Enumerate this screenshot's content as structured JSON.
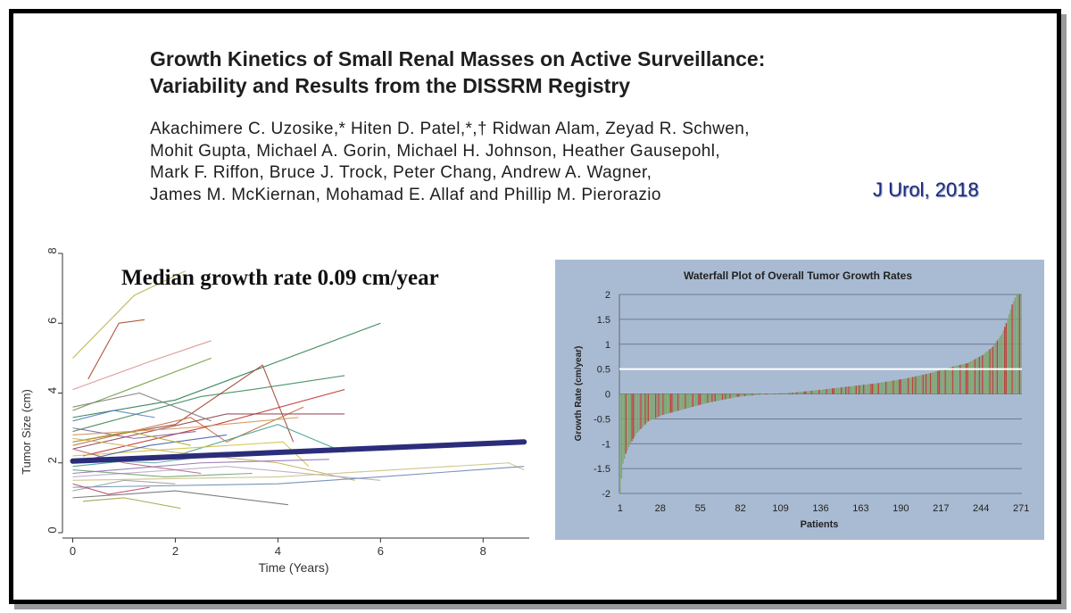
{
  "paper": {
    "title_line1": "Growth Kinetics of Small Renal Masses on Active Surveillance:",
    "title_line2": "Variability and Results from the DISSRM Registry",
    "authors": [
      "Akachimere C. Uzosike,* Hiten D. Patel,*,† Ridwan Alam, Zeyad R. Schwen,",
      "Mohit Gupta, Michael A. Gorin, Michael H. Johnson, Heather Gausepohl,",
      "Mark F. Riffon, Bruce J. Trock, Peter Chang, Andrew A. Wagner,",
      "James M. McKiernan, Mohamad E. Allaf and Phillip M. Pierorazio"
    ],
    "journal": "J Urol, 2018"
  },
  "chart_data": [
    {
      "type": "line",
      "title": "Median growth rate 0.09 cm/year",
      "xlabel": "Time (Years)",
      "ylabel": "Tumor Size (cm)",
      "xlim": [
        -0.2,
        8.9
      ],
      "ylim": [
        0,
        8
      ],
      "xticks": [
        "0",
        "2",
        "4",
        "6",
        "8"
      ],
      "yticks": [
        "0",
        "2",
        "4",
        "6",
        "8"
      ],
      "grid": false,
      "median_trend": {
        "x": [
          0,
          8.8
        ],
        "y": [
          2.05,
          2.6
        ],
        "color": "#2b2d7a"
      },
      "individual_series": [
        {
          "x": [
            0,
            1.2,
            2.2
          ],
          "y": [
            5.0,
            6.8,
            7.5
          ],
          "color": "#b8b040"
        },
        {
          "x": [
            0.3,
            0.9,
            1.4
          ],
          "y": [
            4.4,
            6.0,
            6.1
          ],
          "color": "#a84020"
        },
        {
          "x": [
            0,
            1.5,
            2.7
          ],
          "y": [
            4.1,
            4.9,
            5.5
          ],
          "color": "#d89090"
        },
        {
          "x": [
            0,
            2.7
          ],
          "y": [
            3.5,
            5.0
          ],
          "color": "#6a9a40"
        },
        {
          "x": [
            0,
            2.0,
            4.0,
            6.0
          ],
          "y": [
            3.3,
            3.8,
            4.9,
            6.0
          ],
          "color": "#2a7a4a"
        },
        {
          "x": [
            0,
            2.5,
            3.5,
            5.3
          ],
          "y": [
            2.9,
            3.9,
            4.1,
            4.5
          ],
          "color": "#3a8a5a"
        },
        {
          "x": [
            0,
            2.0,
            3.7,
            4.3
          ],
          "y": [
            2.6,
            3.1,
            4.8,
            2.6
          ],
          "color": "#a04030"
        },
        {
          "x": [
            0,
            2.3,
            3.0,
            4.5
          ],
          "y": [
            2.5,
            3.3,
            2.6,
            3.6
          ],
          "color": "#c07040"
        },
        {
          "x": [
            0.2,
            2.8,
            5.3
          ],
          "y": [
            2.2,
            3.1,
            4.1
          ],
          "color": "#c03030"
        },
        {
          "x": [
            0,
            3.0,
            5.3
          ],
          "y": [
            2.4,
            3.4,
            3.4
          ],
          "color": "#904050"
        },
        {
          "x": [
            0,
            1.3,
            2.7
          ],
          "y": [
            3.6,
            4.0,
            3.2
          ],
          "color": "#808080"
        },
        {
          "x": [
            0,
            2.0,
            4.0,
            5.3
          ],
          "y": [
            1.9,
            2.2,
            3.1,
            2.3
          ],
          "color": "#40a090"
        },
        {
          "x": [
            0,
            2.0,
            4.1,
            4.6
          ],
          "y": [
            2.2,
            2.4,
            2.6,
            1.9
          ],
          "color": "#d0c040"
        },
        {
          "x": [
            0,
            2.0,
            4.0,
            5.5
          ],
          "y": [
            2.7,
            2.3,
            2.0,
            1.5
          ],
          "color": "#c0b060"
        },
        {
          "x": [
            0,
            3.0,
            6.0
          ],
          "y": [
            1.6,
            1.9,
            1.5
          ],
          "color": "#b8a8c8"
        },
        {
          "x": [
            0,
            4.0,
            8.5,
            8.8
          ],
          "y": [
            1.5,
            1.6,
            2.0,
            1.8
          ],
          "color": "#c8c080"
        },
        {
          "x": [
            0,
            4.0,
            6.0,
            8.8
          ],
          "y": [
            1.3,
            1.4,
            1.6,
            1.9
          ],
          "color": "#6a8ab0"
        },
        {
          "x": [
            0,
            2.0,
            4.2
          ],
          "y": [
            1.0,
            1.2,
            0.8
          ],
          "color": "#707070"
        },
        {
          "x": [
            0.2,
            1.0,
            2.1
          ],
          "y": [
            0.9,
            1.0,
            0.7
          ],
          "color": "#a0a040"
        },
        {
          "x": [
            0,
            1.5,
            3.0
          ],
          "y": [
            2.0,
            2.5,
            2.8
          ],
          "color": "#4060b0"
        },
        {
          "x": [
            0,
            1.0,
            2.5
          ],
          "y": [
            2.4,
            2.0,
            1.7
          ],
          "color": "#b06080"
        },
        {
          "x": [
            0,
            1.8,
            3.5
          ],
          "y": [
            1.8,
            1.6,
            1.7
          ],
          "color": "#70a070"
        },
        {
          "x": [
            0,
            1.2,
            2.4
          ],
          "y": [
            3.0,
            2.7,
            2.9
          ],
          "color": "#8060a0"
        },
        {
          "x": [
            0,
            2.2,
            4.4
          ],
          "y": [
            2.8,
            3.0,
            3.3
          ],
          "color": "#d09050"
        },
        {
          "x": [
            0,
            0.8,
            1.6
          ],
          "y": [
            3.2,
            3.5,
            3.3
          ],
          "color": "#5080c0"
        },
        {
          "x": [
            0,
            1.0,
            2.0
          ],
          "y": [
            1.2,
            1.5,
            1.4
          ],
          "color": "#a0a0a0"
        },
        {
          "x": [
            0,
            1.6,
            3.2
          ],
          "y": [
            2.1,
            2.0,
            2.3
          ],
          "color": "#60a0a0"
        },
        {
          "x": [
            0,
            0.7,
            1.5
          ],
          "y": [
            1.4,
            1.1,
            1.3
          ],
          "color": "#c04060"
        },
        {
          "x": [
            0,
            2.5,
            5.0
          ],
          "y": [
            1.7,
            2.0,
            2.1
          ],
          "color": "#9070b0"
        },
        {
          "x": [
            0,
            1.1,
            2.3
          ],
          "y": [
            2.6,
            2.9,
            2.5
          ],
          "color": "#b0b030"
        }
      ]
    },
    {
      "type": "bar",
      "title": "Waterfall Plot of Overall Tumor Growth Rates",
      "xlabel": "Patients",
      "ylabel": "Growth Rate (cm/year)",
      "ylim": [
        -2,
        2
      ],
      "yticks": [
        "2",
        "1.5",
        "1",
        "0.5",
        "0",
        "-0.5",
        "-1",
        "-1.5",
        "-2"
      ],
      "xticks": [
        "1",
        "28",
        "55",
        "82",
        "109",
        "136",
        "163",
        "190",
        "217",
        "244",
        "271"
      ],
      "grid": true,
      "reference_line": 0.5,
      "n_patients": 271,
      "profile": {
        "ranks": [
          1,
          3,
          5,
          8,
          12,
          20,
          30,
          45,
          60,
          80,
          100,
          115,
          135,
          155,
          175,
          195,
          210,
          225,
          235,
          245,
          252,
          258,
          262,
          265,
          268,
          271
        ],
        "rates": [
          -2.0,
          -1.4,
          -1.2,
          -1.0,
          -0.8,
          -0.55,
          -0.42,
          -0.3,
          -0.18,
          -0.06,
          0.0,
          0.02,
          0.08,
          0.15,
          0.22,
          0.32,
          0.42,
          0.55,
          0.62,
          0.78,
          0.95,
          1.2,
          1.5,
          1.8,
          2.0,
          2.0
        ]
      },
      "bar_colors": [
        "#7fa672",
        "#b8463d"
      ],
      "background": "#a9bbd3"
    }
  ]
}
